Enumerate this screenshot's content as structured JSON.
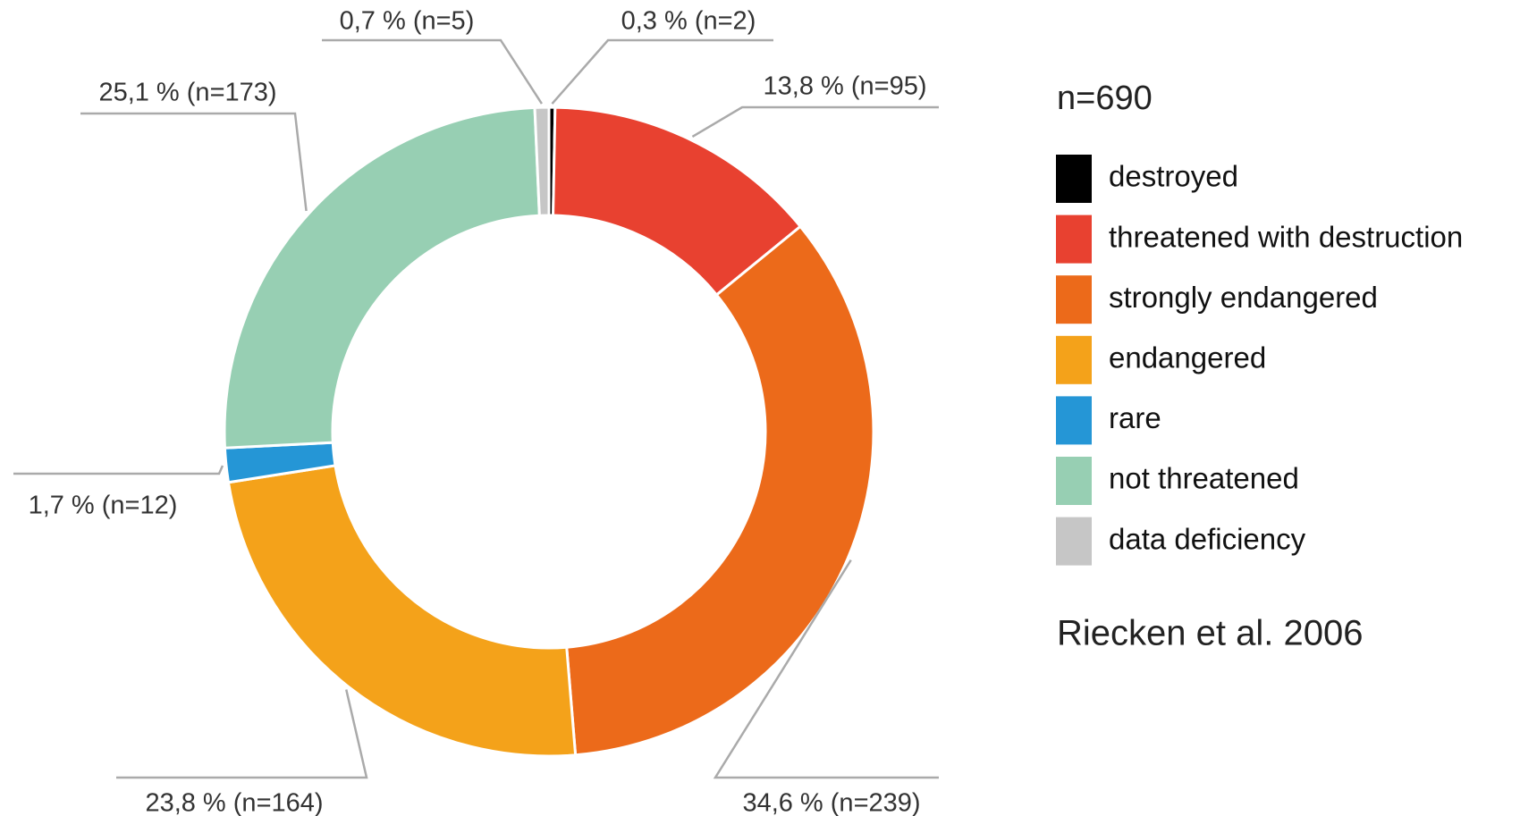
{
  "chart_data": {
    "type": "donut",
    "legend_title": "n=690",
    "note": "Riecken et al. 2006",
    "categories": [
      "destroyed",
      "threatened with destruction",
      "strongly endangered",
      "endangered",
      "rare",
      "not threatened",
      "data deficiency"
    ],
    "values": [
      0.3,
      13.8,
      34.6,
      23.8,
      1.7,
      25.1,
      0.7
    ],
    "counts": [
      2,
      95,
      239,
      164,
      12,
      173,
      5
    ],
    "value_labels": [
      "0,3 % (n=2)",
      "13,8 % (n=95)",
      "34,6 % (n=239)",
      "23,8 % (n=164)",
      "1,7 % (n=12)",
      "25,1 % (n=173)",
      "0,7 % (n=5)"
    ],
    "colors": [
      "#000000",
      "#e84130",
      "#ec6a1a",
      "#f4a21a",
      "#2596d6",
      "#97cfb3",
      "#c6c6c6"
    ],
    "legend": "right"
  }
}
